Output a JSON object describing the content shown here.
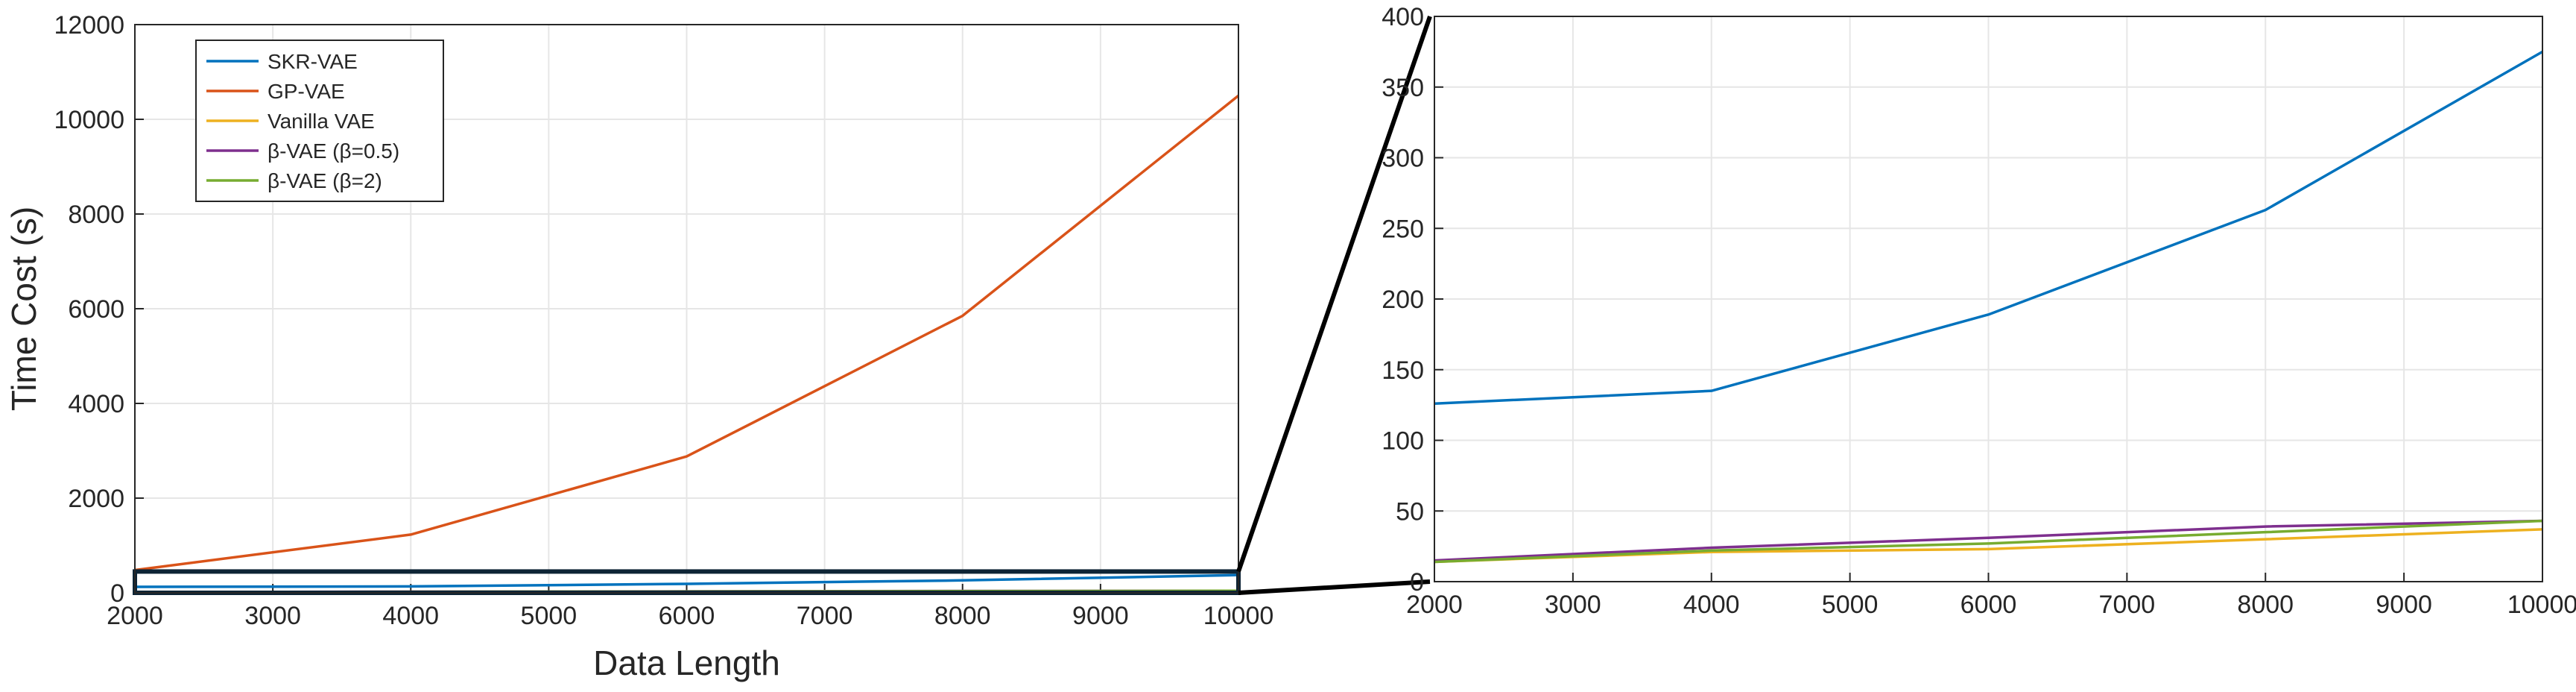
{
  "chart_data": [
    {
      "type": "line",
      "panel": "main",
      "xlabel": "Data Length",
      "ylabel": "Time Cost (s)",
      "xlim": [
        2000,
        10000
      ],
      "ylim": [
        0,
        12000
      ],
      "xticks": [
        "2000",
        "3000",
        "4000",
        "5000",
        "6000",
        "7000",
        "8000",
        "9000",
        "10000"
      ],
      "yticks": [
        "0",
        "2000",
        "4000",
        "6000",
        "8000",
        "10000",
        "12000"
      ],
      "grid": true,
      "legend_position": "top-left",
      "zoom_box": {
        "x": [
          2000,
          10000
        ],
        "y": [
          0,
          450
        ]
      },
      "x": [
        2000,
        4000,
        6000,
        8000,
        10000
      ],
      "series": [
        {
          "name": "SKR-VAE",
          "color": "#0072BD",
          "values": [
            126,
            135,
            189,
            263,
            375
          ]
        },
        {
          "name": "GP-VAE",
          "color": "#D95319",
          "values": [
            480,
            1230,
            2880,
            5850,
            10500
          ]
        },
        {
          "name": "Vanilla VAE",
          "color": "#EDB120",
          "values": [
            14,
            21,
            23,
            30,
            37
          ]
        },
        {
          "name": "β-VAE (β=0.5)",
          "color": "#7E2F8E",
          "values": [
            15,
            24,
            31,
            39,
            43
          ]
        },
        {
          "name": "β-VAE (β=2)",
          "color": "#77AC30",
          "values": [
            14,
            22,
            27,
            35,
            43
          ]
        }
      ]
    },
    {
      "type": "line",
      "panel": "zoom",
      "xlim": [
        2000,
        10000
      ],
      "ylim": [
        0,
        400
      ],
      "xticks": [
        "2000",
        "3000",
        "4000",
        "5000",
        "6000",
        "7000",
        "8000",
        "9000",
        "10000"
      ],
      "yticks": [
        "0",
        "50",
        "100",
        "150",
        "200",
        "250",
        "300",
        "350",
        "400"
      ],
      "grid": true,
      "x": [
        2000,
        4000,
        6000,
        8000,
        10000
      ],
      "series": [
        {
          "color": "#0072BD",
          "values": [
            126,
            135,
            189,
            263,
            375
          ]
        },
        {
          "color": "#EDB120",
          "values": [
            14,
            21,
            23,
            30,
            37
          ]
        },
        {
          "color": "#7E2F8E",
          "values": [
            15,
            24,
            31,
            39,
            43
          ]
        },
        {
          "color": "#77AC30",
          "values": [
            14,
            22,
            27,
            35,
            43
          ]
        }
      ]
    }
  ],
  "colors": {
    "axis": "#262626",
    "grid": "#e6e6e6",
    "connector": "#000000",
    "zoom_box": "#0d2435"
  }
}
